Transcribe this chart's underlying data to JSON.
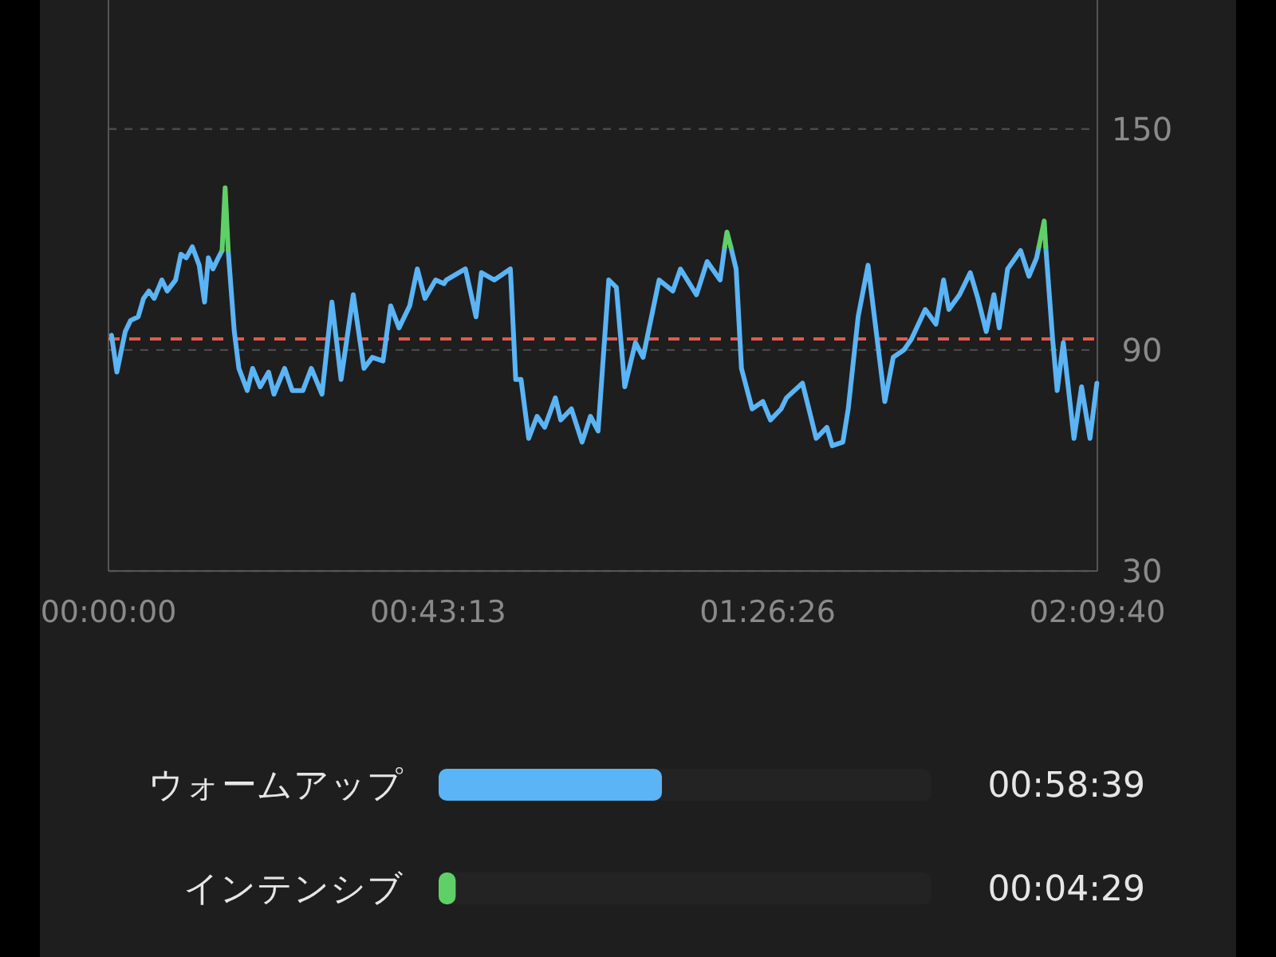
{
  "chart_data": [
    {
      "type": "line",
      "xlim": [
        0,
        129.667
      ],
      "xticks": [
        {
          "value": 0,
          "label": "00:00:00"
        },
        {
          "value": 43.217,
          "label": "00:43:13"
        },
        {
          "value": 86.433,
          "label": "01:26:26"
        },
        {
          "value": 129.667,
          "label": "02:09:40"
        }
      ],
      "ylim": [
        30,
        185
      ],
      "yticks": [
        30,
        90,
        150
      ],
      "grid": "y",
      "ref_lines": [
        {
          "axis": "y",
          "value": 93,
          "color": "#e05a4f",
          "line_style": "dashed"
        }
      ],
      "series": [
        {
          "color": "#5ab4f5",
          "x": [
            0.4,
            1.1,
            2.2,
            2.9,
            3.9,
            4.6,
            5.3,
            6.0,
            7.0,
            7.7,
            8.8,
            9.5,
            10.2,
            11.0,
            11.9,
            12.6,
            13.1,
            13.7,
            14.4,
            14.9,
            15.3,
            15.7,
            16.5,
            17.1,
            18.2,
            18.9,
            19.9,
            21.0,
            21.7,
            23.1,
            24.1,
            25.5,
            26.6,
            28.0,
            29.3,
            30.5,
            32.1,
            33.5,
            34.6,
            36.0,
            37.0,
            38.1,
            39.5,
            40.5,
            41.5,
            42.9,
            44.0,
            44.3,
            46.8,
            48.2,
            48.9,
            50.6,
            52.7,
            53.4,
            54.1,
            55.1,
            56.2,
            57.2,
            58.6,
            59.3,
            60.7,
            62.1,
            63.2,
            64.2,
            65.6,
            66.6,
            67.7,
            69.1,
            70.1,
            72.2,
            74.0,
            75.0,
            77.1,
            78.5,
            80.2,
            80.8,
            81.1,
            81.6,
            82.3,
            83.0,
            84.4,
            85.8,
            86.8,
            88.2,
            88.9,
            91.0,
            92.8,
            94.2,
            94.9,
            96.3,
            97.0,
            98.3,
            99.6,
            101.8,
            102.9,
            104.3,
            105.3,
            107.1,
            108.5,
            109.5,
            110.2,
            111.6,
            113.0,
            114.0,
            115.1,
            116.1,
            116.8,
            117.9,
            119.6,
            120.7,
            121.7,
            122.0,
            122.7,
            122.9,
            123.8,
            124.4,
            125.2,
            126.6,
            127.6,
            128.7,
            129.6
          ],
          "values": [
            94,
            84,
            95,
            98,
            99,
            104,
            106,
            104,
            109,
            106,
            109,
            116,
            115,
            118,
            113,
            103,
            115,
            112,
            115,
            117,
            null,
            117,
            95,
            85,
            79,
            85,
            80,
            84,
            78,
            85,
            79,
            79,
            85,
            78,
            103,
            82,
            105,
            85,
            88,
            87,
            102,
            96,
            102,
            112,
            104,
            109,
            108,
            109,
            112,
            99,
            111,
            109,
            112,
            82,
            82,
            66,
            72,
            69,
            77,
            71,
            74,
            65,
            72,
            68,
            109,
            107,
            80,
            92,
            88,
            109,
            106,
            112,
            105,
            114,
            109,
            118,
            null,
            118,
            112,
            85,
            74,
            76,
            71,
            74,
            77,
            81,
            66,
            69,
            64,
            65,
            74,
            99,
            113,
            76,
            88,
            90,
            93,
            101,
            97,
            109,
            101,
            105,
            111,
            104,
            95,
            105,
            96,
            112,
            117,
            110,
            115,
            118,
            null,
            118,
            93,
            79,
            92,
            66,
            80,
            66,
            81
          ]
        },
        {
          "color": "#5fd068",
          "x": [
            14.9,
            15.3,
            15.7
          ],
          "values": [
            117,
            134,
            117
          ]
        },
        {
          "color": "#5fd068",
          "x": [
            80.8,
            81.1,
            81.6
          ],
          "values": [
            118,
            122,
            118
          ]
        },
        {
          "color": "#5fd068",
          "x": [
            122.0,
            122.7,
            122.9
          ],
          "values": [
            118,
            125,
            118
          ]
        }
      ]
    },
    {
      "type": "bar",
      "orientation": "horizontal",
      "categories": [
        "ウォームアップ",
        "インテンシブ"
      ],
      "values": [
        58.65,
        4.483
      ],
      "colors": [
        "#5ab4f5",
        "#5fd068"
      ],
      "value_labels": [
        "00:58:39",
        "00:04:29"
      ]
    }
  ]
}
